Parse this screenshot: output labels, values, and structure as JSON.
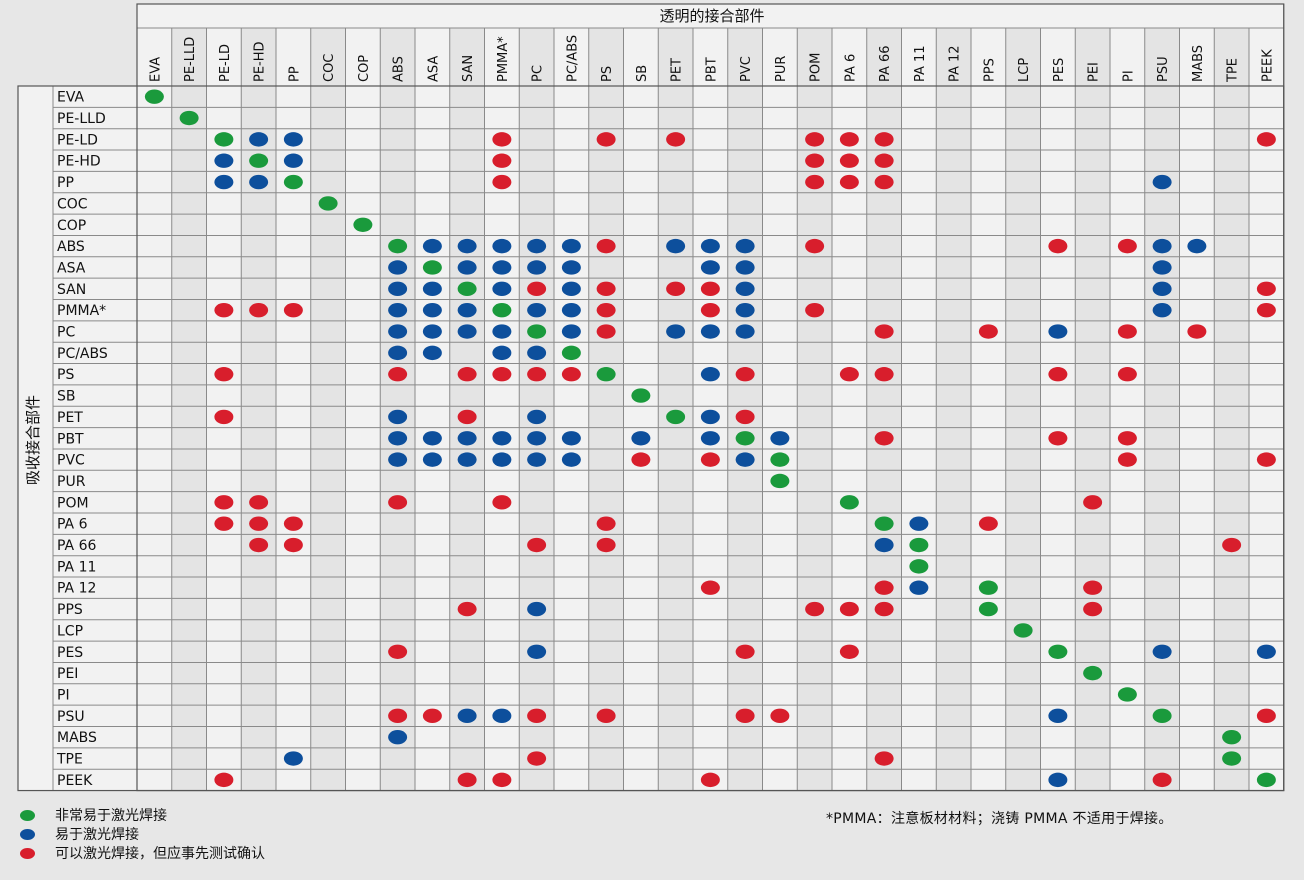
{
  "chart_data": {
    "type": "table",
    "title": "透明的接合部件",
    "ylabel": "吸收接合部件",
    "columns": [
      "EVA",
      "PE-LLD",
      "PE-LD",
      "PE-HD",
      "PP",
      "COC",
      "COP",
      "ABS",
      "ASA",
      "SAN",
      "PMMA*",
      "PC",
      "PC/ABS",
      "PS",
      "SB",
      "PET",
      "PBT",
      "PVC",
      "PUR",
      "POM",
      "PA 6",
      "PA 66",
      "PA 11",
      "PA 12",
      "PPS",
      "LCP",
      "PES",
      "PEI",
      "PI",
      "PSU",
      "MABS",
      "TPE",
      "PEEK"
    ],
    "rows": [
      "EVA",
      "PE-LLD",
      "PE-LD",
      "PE-HD",
      "PP",
      "COC",
      "COP",
      "ABS",
      "ASA",
      "SAN",
      "PMMA*",
      "PC",
      "PC/ABS",
      "PS",
      "SB",
      "PET",
      "PBT",
      "PVC",
      "PUR",
      "POM",
      "PA 6",
      "PA 66",
      "PA 11",
      "PA 12",
      "PPS",
      "LCP",
      "PES",
      "PEI",
      "PI",
      "PSU",
      "MABS",
      "TPE",
      "PEEK"
    ],
    "levels": {
      "G": {
        "label": "非常易于激光焊接",
        "color": "#1a9a3c"
      },
      "B": {
        "label": "易于激光焊接",
        "color": "#0d4f9c"
      },
      "R": {
        "label": "可以激光焊接，但应事先测试确认",
        "color": "#d81e2c"
      }
    },
    "matrix": [
      "G................................",
      ".G...............................",
      "..GBB.....R..R.R...RRR..........R",
      "..BGB.....R........RRR...........",
      "..BBG.....R........RRR.......B...",
      ".....G...........................",
      "......G..........................",
      ".......GBBBBBR.BBB.R......R.RBB..",
      ".......BGBBBB...BB...........B...",
      ".......BBGBRBR.RRB...........B..R",
      "..RRR..BBBGBBR..RB.R.........B..R",
      ".......BBBBGBR.BBB...R..R.B.R.R..",
      ".......BB.BBG....................",
      "..R....R.RRRRG..BR..RR....R.R....",
      "..............G..................",
      "..R....B.R.B...GBR...............",
      ".......BBBBBB.B.BGB..R....R.R....",
      ".......BBBBBB.R.RBG.........R...R",
      "..................G..............",
      "..RR...R..R.........G......R.....",
      "..RRR........R.......GB.R........",
      "...RR......R.R.......BG........R.",
      "......................G..........",
      "................R....RB.G..R.....",
      ".........R.B.......RRR..G..R.....",
      ".........................G.......",
      ".......R...B.....R..R.....G..B..B",
      "...........................G.....",
      "............................G....",
      ".......RRBBR.R...RR.......B..G..R",
      ".......B.......................G.",
      "....B......R.........R.........G.",
      "..R......RR.....R.........B..R..G"
    ]
  },
  "footnote": "*PMMA：注意板材材料；浇铸 PMMA 不适用于焊接。"
}
